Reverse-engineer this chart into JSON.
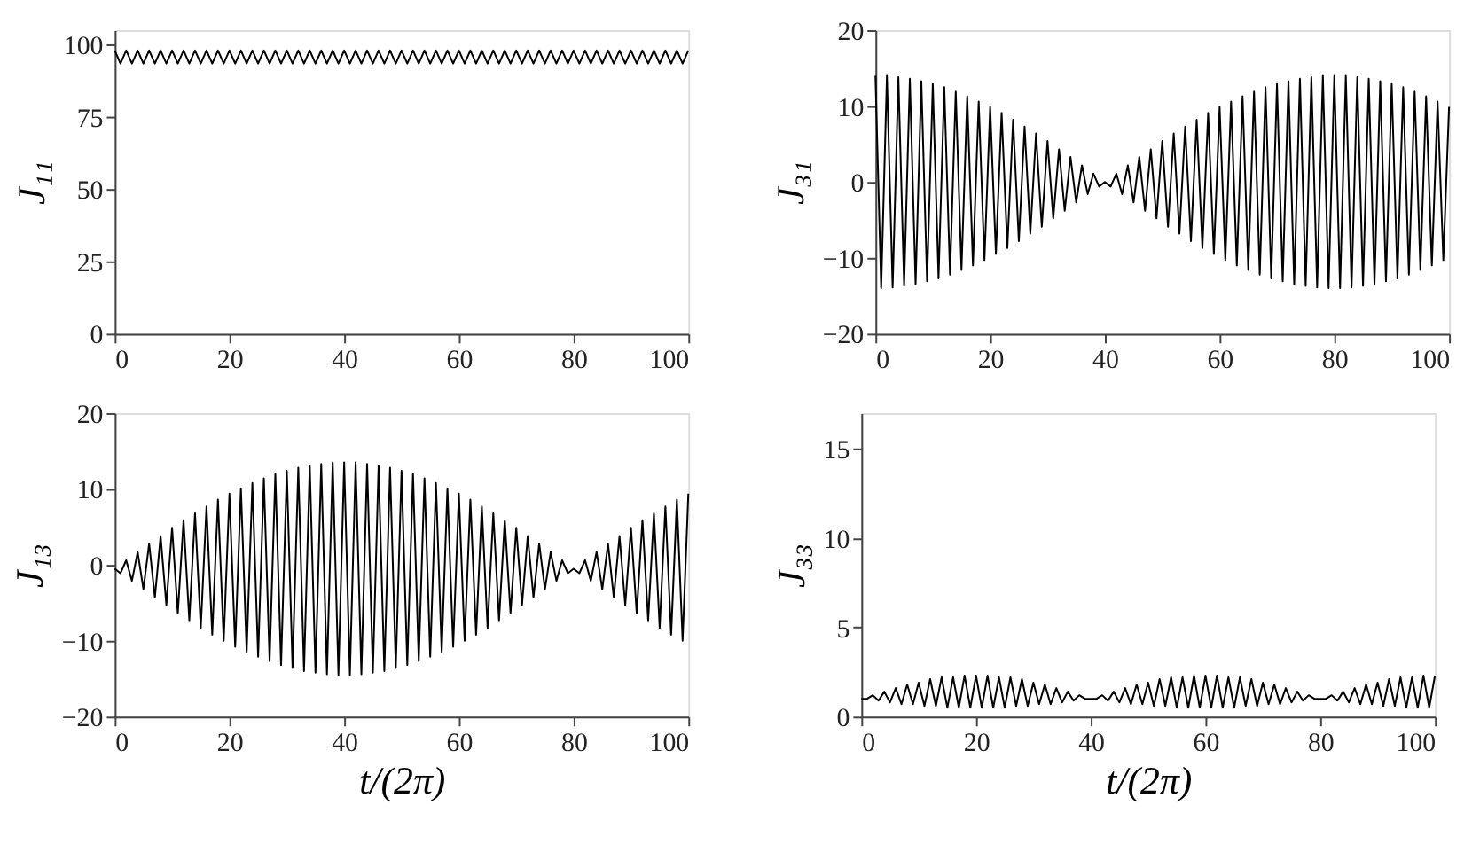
{
  "chart_data": [
    {
      "type": "line",
      "ylabel": "J₁₁",
      "xlim": [
        0,
        100
      ],
      "xticks": [
        0,
        20,
        40,
        60,
        80,
        100
      ],
      "ylim": [
        0,
        105
      ],
      "yticks": [
        0,
        25,
        50,
        75,
        100
      ],
      "grid": false,
      "marker": "none",
      "line_style": "solid",
      "x": [
        0,
        1,
        2,
        3,
        4,
        5,
        6,
        7,
        8,
        9,
        10,
        11,
        12,
        13,
        14,
        15,
        16,
        17,
        18,
        19,
        20,
        21,
        22,
        23,
        24,
        25,
        26,
        27,
        28,
        29,
        30,
        31,
        32,
        33,
        34,
        35,
        36,
        37,
        38,
        39,
        40,
        41,
        42,
        43,
        44,
        45,
        46,
        47,
        48,
        49,
        50,
        51,
        52,
        53,
        54,
        55,
        56,
        57,
        58,
        59,
        60,
        61,
        62,
        63,
        64,
        65,
        66,
        67,
        68,
        69,
        70,
        71,
        72,
        73,
        74,
        75,
        76,
        77,
        78,
        79,
        80,
        81,
        82,
        83,
        84,
        85,
        86,
        87,
        88,
        89,
        90,
        91,
        92,
        93,
        94,
        95,
        96,
        97,
        98,
        99,
        100
      ],
      "series": [
        {
          "color": "#000000",
          "values": [
            98,
            93.5,
            98,
            93.5,
            98,
            93.5,
            98,
            93.5,
            98,
            93.5,
            98,
            93.5,
            98,
            93.5,
            98,
            93.5,
            98,
            93.5,
            98,
            93.5,
            98,
            93.5,
            98,
            93.5,
            98,
            93.5,
            98,
            93.5,
            98,
            93.5,
            98,
            93.5,
            98,
            93.5,
            98,
            93.5,
            98,
            93.5,
            98,
            93.5,
            98,
            93.5,
            98,
            93.5,
            98,
            93.5,
            98,
            93.5,
            98,
            93.5,
            98,
            93.5,
            98,
            93.5,
            98,
            93.5,
            98,
            93.5,
            98,
            93.5,
            98,
            93.5,
            98,
            93.5,
            98,
            93.5,
            98,
            93.5,
            98,
            93.5,
            98,
            93.5,
            98,
            93.5,
            98,
            93.5,
            98,
            93.5,
            98,
            93.5,
            98,
            93.5,
            98,
            93.5,
            98,
            93.5,
            98,
            93.5,
            98,
            93.5,
            98,
            93.5,
            98,
            93.5,
            98,
            93.5,
            98,
            93.5,
            98,
            93.5,
            98
          ]
        }
      ]
    },
    {
      "type": "line",
      "ylabel": "J₃₁",
      "xlim": [
        0,
        100
      ],
      "xticks": [
        0,
        20,
        40,
        60,
        80,
        100
      ],
      "ylim": [
        -20,
        20
      ],
      "yticks": [
        -20,
        -10,
        0,
        10,
        20
      ],
      "grid": false,
      "marker": "none",
      "line_style": "solid",
      "x": [
        0,
        1,
        2,
        3,
        4,
        5,
        6,
        7,
        8,
        9,
        10,
        11,
        12,
        13,
        14,
        15,
        16,
        17,
        18,
        19,
        20,
        21,
        22,
        23,
        24,
        25,
        26,
        27,
        28,
        29,
        30,
        31,
        32,
        33,
        34,
        35,
        36,
        37,
        38,
        39,
        40,
        41,
        42,
        43,
        44,
        45,
        46,
        47,
        48,
        49,
        50,
        51,
        52,
        53,
        54,
        55,
        56,
        57,
        58,
        59,
        60,
        61,
        62,
        63,
        64,
        65,
        66,
        67,
        68,
        69,
        70,
        71,
        72,
        73,
        74,
        75,
        76,
        77,
        78,
        79,
        80,
        81,
        82,
        83,
        84,
        85,
        86,
        87,
        88,
        89,
        90,
        91,
        92,
        93,
        94,
        95,
        96,
        97,
        98,
        99,
        100
      ],
      "series": [
        {
          "color": "#000000",
          "values": [
            14,
            -14.0,
            14.0,
            -13.9,
            13.8,
            -13.7,
            13.6,
            -13.5,
            13.3,
            -13.1,
            12.9,
            -12.7,
            12.5,
            -12.2,
            11.9,
            -11.6,
            11.3,
            -11.0,
            10.6,
            -10.3,
            9.9,
            -9.5,
            9.1,
            -8.7,
            8.2,
            -7.8,
            7.3,
            -6.8,
            6.4,
            -5.9,
            5.4,
            -4.8,
            4.3,
            -3.8,
            3.3,
            -2.7,
            2.2,
            -1.6,
            1.1,
            -0.6,
            0,
            -0.6,
            1.1,
            -1.6,
            2.2,
            -2.7,
            3.3,
            -3.8,
            4.3,
            -4.8,
            5.4,
            -5.9,
            6.4,
            -6.8,
            7.3,
            -7.8,
            8.2,
            -8.7,
            9.1,
            -9.5,
            9.9,
            -10.3,
            10.6,
            -11.0,
            11.3,
            -11.6,
            11.9,
            -12.2,
            12.5,
            -12.7,
            12.9,
            -13.1,
            13.3,
            -13.5,
            13.6,
            -13.7,
            13.8,
            -13.9,
            14.0,
            -14.0,
            14,
            -14.0,
            14.0,
            -13.9,
            13.8,
            -13.7,
            13.6,
            -13.5,
            13.3,
            -13.1,
            12.9,
            -12.7,
            12.5,
            -12.2,
            11.9,
            -11.6,
            11.3,
            -11.0,
            10.6,
            -10.3,
            9.9
          ]
        }
      ]
    },
    {
      "type": "line",
      "xlabel": "t/(2π)",
      "ylabel": "J₁₃",
      "xlim": [
        0,
        100
      ],
      "xticks": [
        0,
        20,
        40,
        60,
        80,
        100
      ],
      "ylim": [
        -20,
        20
      ],
      "yticks": [
        -20,
        -10,
        0,
        10,
        20
      ],
      "grid": false,
      "marker": "none",
      "line_style": "solid",
      "x": [
        0,
        1,
        2,
        3,
        4,
        5,
        6,
        7,
        8,
        9,
        10,
        11,
        12,
        13,
        14,
        15,
        16,
        17,
        18,
        19,
        20,
        21,
        22,
        23,
        24,
        25,
        26,
        27,
        28,
        29,
        30,
        31,
        32,
        33,
        34,
        35,
        36,
        37,
        38,
        39,
        40,
        41,
        42,
        43,
        44,
        45,
        46,
        47,
        48,
        49,
        50,
        51,
        52,
        53,
        54,
        55,
        56,
        57,
        58,
        59,
        60,
        61,
        62,
        63,
        64,
        65,
        66,
        67,
        68,
        69,
        70,
        71,
        72,
        73,
        74,
        75,
        76,
        77,
        78,
        79,
        80,
        81,
        82,
        83,
        84,
        85,
        86,
        87,
        88,
        89,
        90,
        91,
        92,
        93,
        94,
        95,
        96,
        97,
        98,
        99,
        100
      ],
      "series": [
        {
          "color": "#000000",
          "values": [
            -0.5,
            -1.1,
            0.6,
            -2.1,
            1.7,
            -3.2,
            2.8,
            -4.3,
            3.8,
            -5.3,
            4.9,
            -6.4,
            5.9,
            -7.3,
            6.8,
            -8.3,
            7.7,
            -9.2,
            8.6,
            -10.0,
            9.4,
            -10.8,
            10.1,
            -11.5,
            10.8,
            -12.1,
            11.4,
            -12.7,
            12.0,
            -13.2,
            12.4,
            -13.6,
            12.8,
            -14.0,
            13.1,
            -14.2,
            13.3,
            -14.4,
            13.5,
            -14.5,
            13.5,
            -14.5,
            13.5,
            -14.4,
            13.3,
            -14.2,
            13.1,
            -14.0,
            12.8,
            -13.6,
            12.4,
            -13.2,
            12.0,
            -12.7,
            11.4,
            -12.1,
            10.8,
            -11.5,
            10.1,
            -10.8,
            9.4,
            -10.0,
            8.6,
            -9.2,
            7.7,
            -8.3,
            6.8,
            -7.3,
            5.9,
            -6.4,
            4.9,
            -5.3,
            3.8,
            -4.3,
            2.8,
            -3.2,
            1.7,
            -2.1,
            0.6,
            -1.1,
            -0.5,
            -1.1,
            0.6,
            -2.1,
            1.7,
            -3.2,
            2.8,
            -4.3,
            3.8,
            -5.3,
            4.9,
            -6.4,
            5.9,
            -7.3,
            6.8,
            -8.3,
            7.7,
            -9.2,
            8.6,
            -10.0,
            9.4
          ]
        }
      ]
    },
    {
      "type": "line",
      "xlabel": "t/(2π)",
      "ylabel": "J₃₃",
      "xlim": [
        0,
        100
      ],
      "xticks": [
        0,
        20,
        40,
        60,
        80,
        100
      ],
      "ylim": [
        0,
        17
      ],
      "yticks": [
        0,
        5,
        10,
        15
      ],
      "grid": false,
      "marker": "none",
      "line_style": "solid",
      "x": [
        0,
        1,
        2,
        3,
        4,
        5,
        6,
        7,
        8,
        9,
        10,
        11,
        12,
        13,
        14,
        15,
        16,
        17,
        18,
        19,
        20,
        21,
        22,
        23,
        24,
        25,
        26,
        27,
        28,
        29,
        30,
        31,
        32,
        33,
        34,
        35,
        36,
        37,
        38,
        39,
        40,
        41,
        42,
        43,
        44,
        45,
        46,
        47,
        48,
        49,
        50,
        51,
        52,
        53,
        54,
        55,
        56,
        57,
        58,
        59,
        60,
        61,
        62,
        63,
        64,
        65,
        66,
        67,
        68,
        69,
        70,
        71,
        72,
        73,
        74,
        75,
        76,
        77,
        78,
        79,
        80,
        81,
        82,
        83,
        84,
        85,
        86,
        87,
        88,
        89,
        90,
        91,
        92,
        93,
        94,
        95,
        96,
        97,
        98,
        99,
        100
      ],
      "series": [
        {
          "color": "#000000",
          "values": [
            1.0,
            1.0,
            1.2,
            0.9,
            1.4,
            0.8,
            1.6,
            0.7,
            1.8,
            0.7,
            1.9,
            0.6,
            2.1,
            0.6,
            2.2,
            0.5,
            2.2,
            0.5,
            2.3,
            0.5,
            2.3,
            0.5,
            2.3,
            0.5,
            2.2,
            0.5,
            2.2,
            0.6,
            2.1,
            0.6,
            1.9,
            0.7,
            1.8,
            0.7,
            1.6,
            0.8,
            1.4,
            0.9,
            1.2,
            1.0,
            1.0,
            1.0,
            1.2,
            0.9,
            1.4,
            0.8,
            1.6,
            0.7,
            1.8,
            0.7,
            1.9,
            0.6,
            2.1,
            0.6,
            2.2,
            0.5,
            2.2,
            0.5,
            2.3,
            0.5,
            2.3,
            0.5,
            2.3,
            0.5,
            2.2,
            0.5,
            2.2,
            0.6,
            2.1,
            0.6,
            1.9,
            0.7,
            1.8,
            0.7,
            1.6,
            0.8,
            1.4,
            0.9,
            1.2,
            1.0,
            1.0,
            1.0,
            1.2,
            0.9,
            1.4,
            0.8,
            1.6,
            0.7,
            1.8,
            0.7,
            1.9,
            0.6,
            2.1,
            0.6,
            2.2,
            0.5,
            2.2,
            0.5,
            2.3,
            0.5,
            2.3
          ]
        }
      ]
    }
  ]
}
